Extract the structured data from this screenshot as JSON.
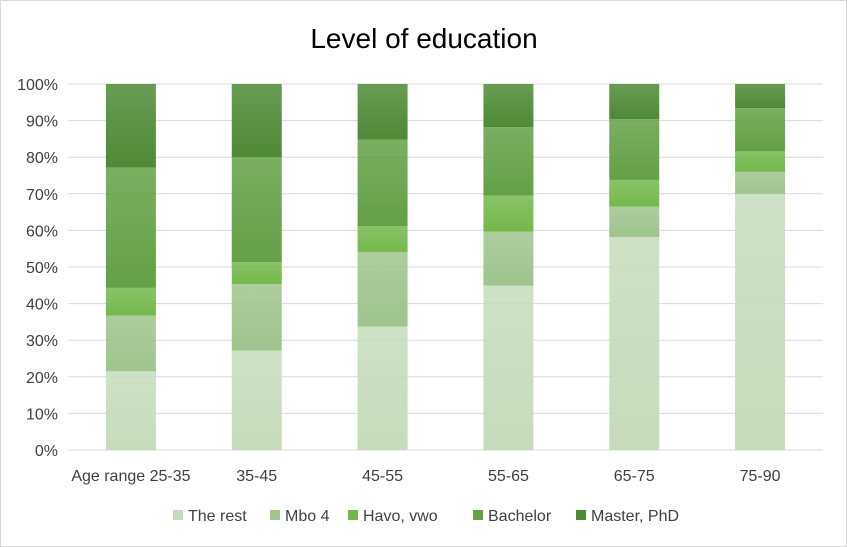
{
  "chart_data": {
    "type": "bar",
    "stacked": true,
    "percent": true,
    "title": "Level of education",
    "categories": [
      "Age range 25-35",
      "35-45",
      "45-55",
      "55-65",
      "65-75",
      "75-90"
    ],
    "series": [
      {
        "name": "The rest",
        "color": "#c5dcbc",
        "values": [
          21.5,
          27.2,
          33.7,
          44.9,
          58.2,
          70.0
        ]
      },
      {
        "name": "Mbo 4",
        "color": "#9fc48d",
        "values": [
          15.2,
          18.1,
          20.4,
          14.8,
          8.3,
          6.0
        ]
      },
      {
        "name": "Havo, vwo",
        "color": "#74b84c",
        "values": [
          7.6,
          6.0,
          7.1,
          9.8,
          7.3,
          5.6
        ]
      },
      {
        "name": "Bachelor",
        "color": "#63a046",
        "values": [
          32.9,
          28.7,
          23.6,
          18.7,
          16.6,
          11.8
        ]
      },
      {
        "name": "Master, PhD",
        "color": "#4e8a36",
        "values": [
          22.8,
          20.0,
          15.2,
          11.8,
          9.6,
          6.6
        ]
      }
    ],
    "y_ticks": [
      "0%",
      "10%",
      "20%",
      "30%",
      "40%",
      "50%",
      "60%",
      "70%",
      "80%",
      "90%",
      "100%"
    ],
    "ylim": [
      0,
      100
    ],
    "grid": true,
    "legend_position": "bottom",
    "xlabel": "",
    "ylabel": ""
  }
}
